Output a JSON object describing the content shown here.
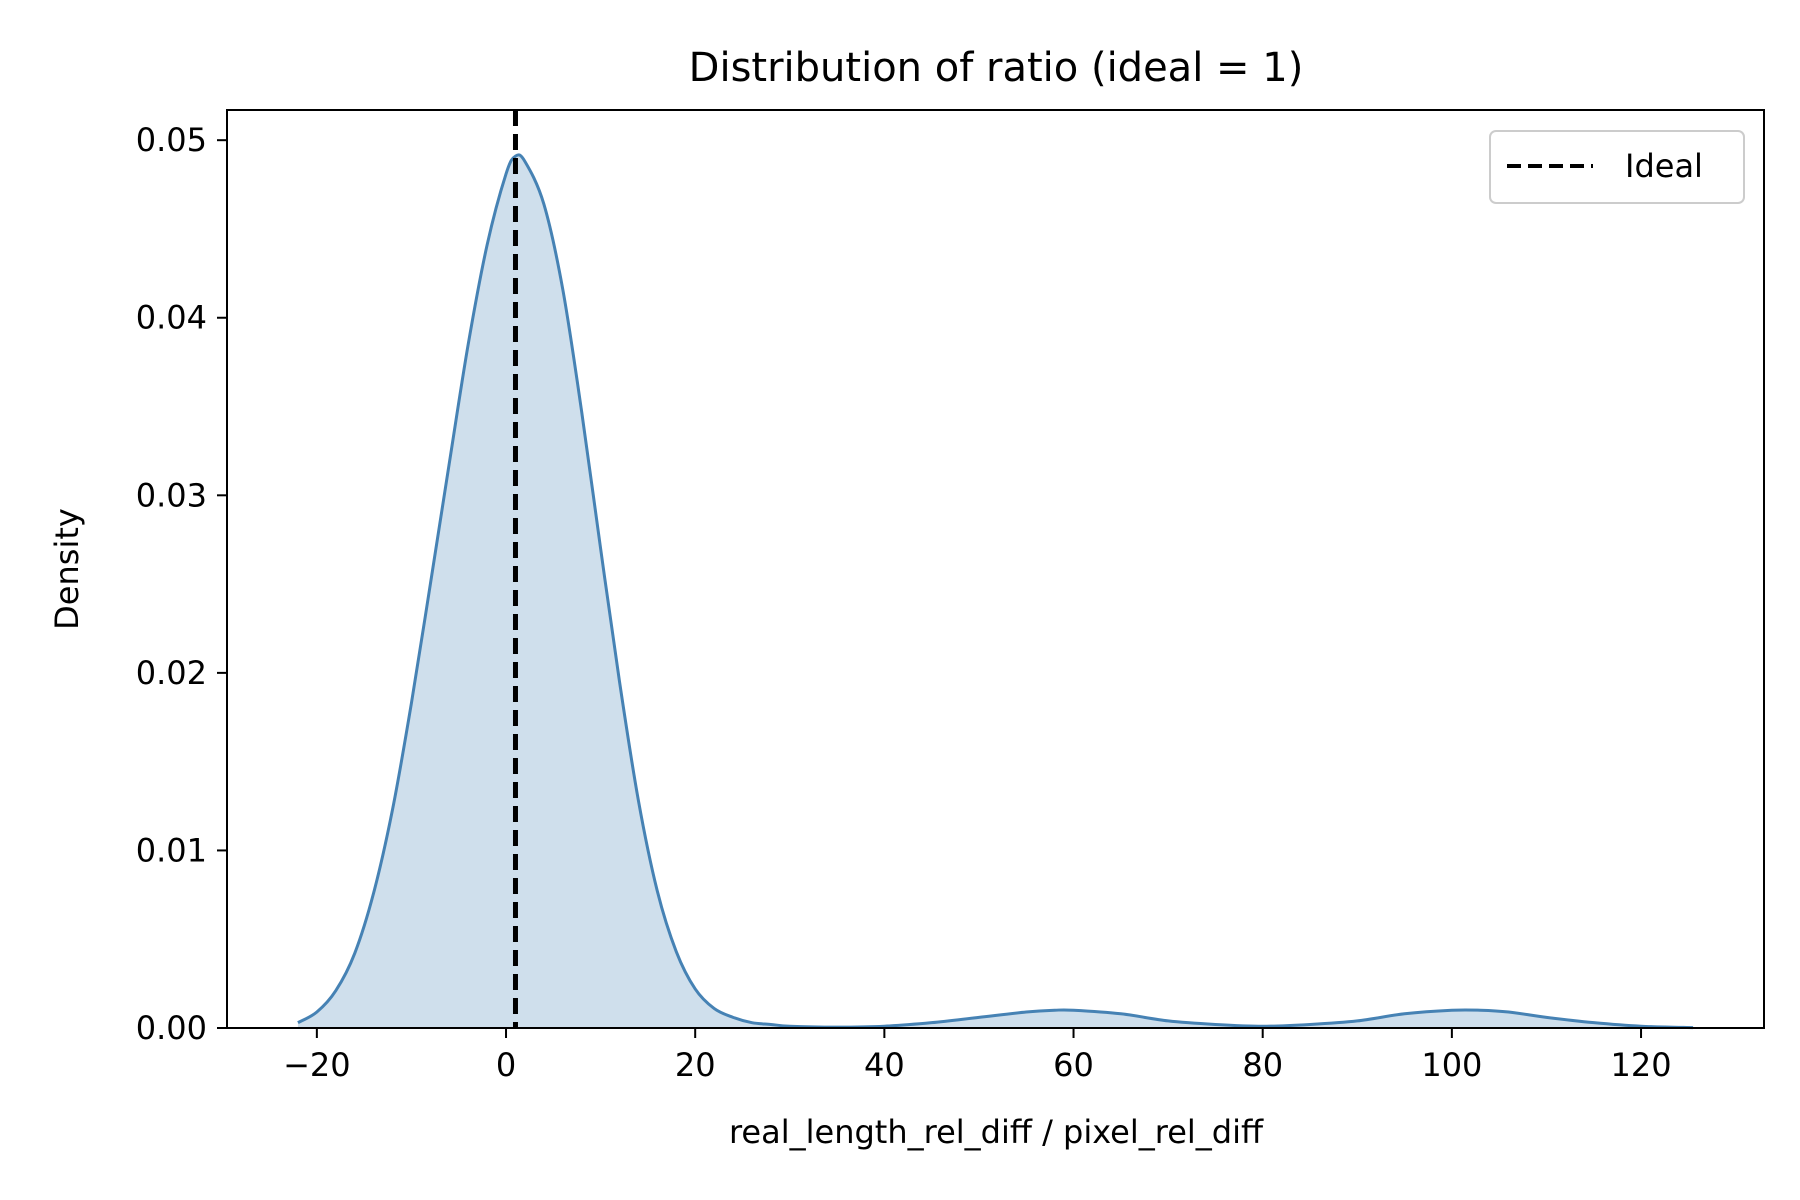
{
  "chart_data": {
    "type": "area",
    "title": "Distribution of ratio (ideal = 1)",
    "xlabel": "real_length_rel_diff / pixel_rel_diff",
    "ylabel": "Density",
    "xlim": [
      -29.5,
      133
    ],
    "ylim": [
      0,
      0.0517
    ],
    "x_ticks": [
      -20,
      0,
      20,
      40,
      60,
      80,
      100,
      120
    ],
    "x_tick_labels": [
      "−20",
      "0",
      "20",
      "40",
      "60",
      "80",
      "100",
      "120"
    ],
    "y_ticks": [
      0.0,
      0.01,
      0.02,
      0.03,
      0.04,
      0.05
    ],
    "y_tick_labels": [
      "0.00",
      "0.01",
      "0.02",
      "0.03",
      "0.04",
      "0.05"
    ],
    "grid": false,
    "legend_position": "top-right",
    "series": [
      {
        "type": "kde",
        "color": "#4682b4",
        "fill_color": "#cfdfec",
        "x": [
          -22,
          -20,
          -18,
          -16,
          -14,
          -12,
          -10,
          -8,
          -6,
          -4,
          -2,
          0,
          1,
          2,
          4,
          6,
          8,
          10,
          12,
          14,
          16,
          18,
          20,
          22,
          24,
          26,
          28,
          30,
          35,
          40,
          45,
          50,
          55,
          58,
          60,
          65,
          70,
          75,
          80,
          85,
          90,
          95,
          100,
          103,
          106,
          110,
          115,
          120,
          125.5
        ],
        "y": [
          0.0003,
          0.0009,
          0.0021,
          0.0042,
          0.0076,
          0.0123,
          0.0183,
          0.025,
          0.0318,
          0.0385,
          0.0441,
          0.0481,
          0.0491,
          0.0488,
          0.0464,
          0.0416,
          0.0347,
          0.027,
          0.0195,
          0.0128,
          0.0077,
          0.0043,
          0.0022,
          0.0011,
          0.0006,
          0.0003,
          0.0002,
          0.0001,
          5e-05,
          0.0001,
          0.0003,
          0.0006,
          0.0009,
          0.001,
          0.001,
          0.0008,
          0.0004,
          0.0002,
          0.0001,
          0.0002,
          0.0004,
          0.0008,
          0.001,
          0.001,
          0.0009,
          0.0006,
          0.0003,
          0.0001,
          2e-05
        ]
      }
    ],
    "reference_line": {
      "x": 1,
      "style": "dashed",
      "color": "#000000",
      "label": "Ideal"
    }
  }
}
